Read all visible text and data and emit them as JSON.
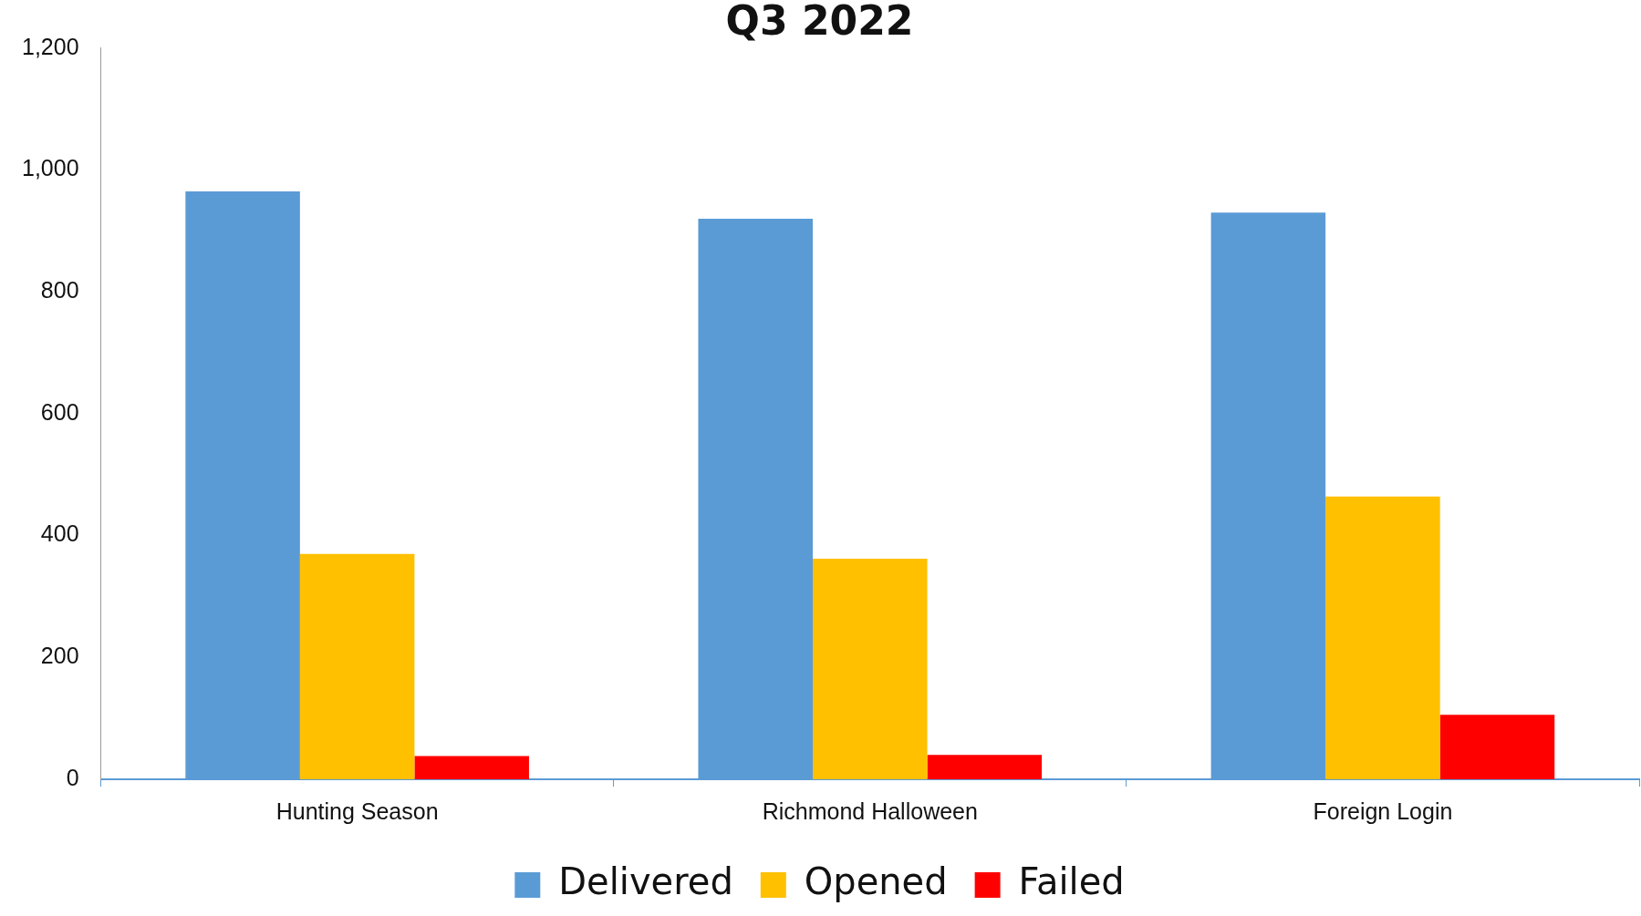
{
  "chart_data": {
    "type": "bar",
    "title": "Q3 2022",
    "categories": [
      "Hunting Season",
      "Richmond Halloween",
      "Foreign Login"
    ],
    "series": [
      {
        "name": "Delivered",
        "color": "#5b9bd5",
        "values": [
          965,
          920,
          930
        ]
      },
      {
        "name": "Opened",
        "color": "#ffc000",
        "values": [
          370,
          362,
          464
        ]
      },
      {
        "name": "Failed",
        "color": "#ff0000",
        "values": [
          38,
          40,
          106
        ]
      }
    ],
    "ylim": [
      0,
      1200
    ],
    "yticks": [
      0,
      200,
      400,
      600,
      800,
      {
        "value": 1000,
        "label": "1,000"
      },
      {
        "value": 1200,
        "label": "1,200"
      }
    ],
    "grid": false,
    "legend": "bottom"
  }
}
